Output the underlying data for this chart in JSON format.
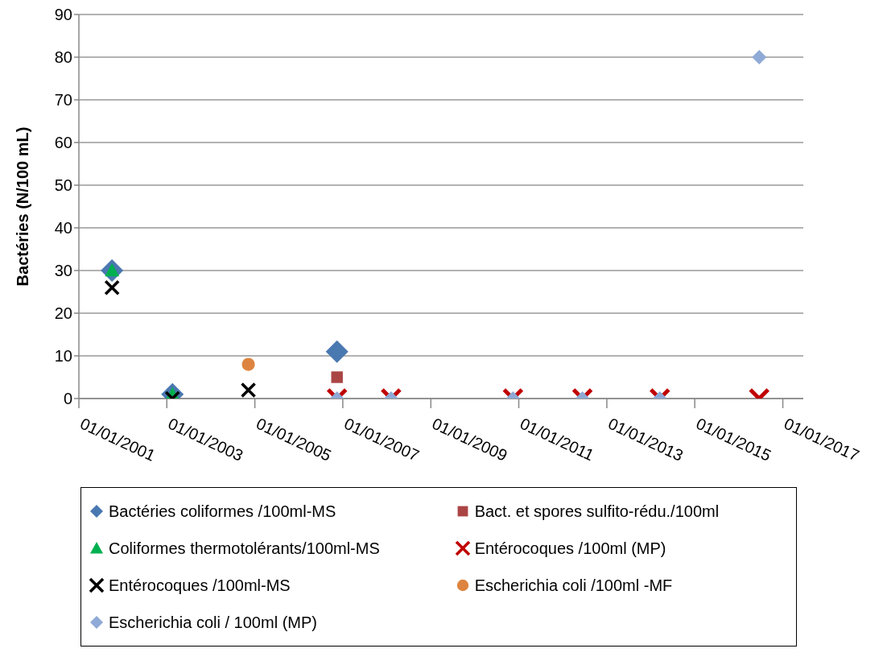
{
  "chart_data": {
    "type": "scatter",
    "ylabel": "Bactéries (N/100 mL)",
    "xlim": [
      "2001-01-01",
      "2017-06-20"
    ],
    "xticks": [
      {
        "value": "2001-01-01",
        "label": "01/01/2001"
      },
      {
        "value": "2003-01-01",
        "label": "01/01/2003"
      },
      {
        "value": "2005-01-01",
        "label": "01/01/2005"
      },
      {
        "value": "2007-01-01",
        "label": "01/01/2007"
      },
      {
        "value": "2009-01-01",
        "label": "01/01/2009"
      },
      {
        "value": "2011-01-01",
        "label": "01/01/2011"
      },
      {
        "value": "2013-01-01",
        "label": "01/01/2013"
      },
      {
        "value": "2015-01-01",
        "label": "01/01/2015"
      },
      {
        "value": "2017-01-01",
        "label": "01/01/2017"
      }
    ],
    "ylim": [
      0,
      90
    ],
    "yticks": [
      0,
      10,
      20,
      30,
      40,
      50,
      60,
      70,
      80,
      90
    ],
    "grid": "y",
    "legend": "bottom",
    "series": [
      {
        "name": "Bactéries coliformes /100ml-MS",
        "color": "#4a78b0",
        "marker": "diamond",
        "x": [
          "2001-10-03",
          "2003-02-17",
          "2006-11-14"
        ],
        "values": [
          30,
          1,
          11
        ]
      },
      {
        "name": "Bact. et spores sulfito-rédu./100ml",
        "color": "#ab4545",
        "marker": "square",
        "x": [
          "2006-11-14"
        ],
        "values": [
          5
        ]
      },
      {
        "name": "Coliformes thermotolérants/100ml-MS",
        "color": "#00b050",
        "marker": "triangle",
        "x": [
          "2001-10-03",
          "2003-02-17"
        ],
        "values": [
          30,
          1
        ]
      },
      {
        "name": "Entérocoques /100ml (MP)",
        "color": "#c00000",
        "marker": "cross",
        "x": [
          "2006-11-14",
          "2008-02-06",
          "2010-11-14",
          "2012-06-12",
          "2014-03-17",
          "2016-06-19"
        ],
        "values": [
          0,
          0,
          0,
          0,
          0,
          0
        ]
      },
      {
        "name": "Entérocoques /100ml-MS",
        "color": "#000000",
        "marker": "cross",
        "x": [
          "2001-10-03",
          "2003-02-17",
          "2004-11-08"
        ],
        "values": [
          26,
          0,
          2
        ]
      },
      {
        "name": "Escherichia coli /100ml -MF",
        "color": "#dd8540",
        "marker": "circle",
        "x": [
          "2004-11-08"
        ],
        "values": [
          8
        ]
      },
      {
        "name": "Escherichia coli / 100ml (MP)",
        "color": "#8faad6",
        "marker": "diamond",
        "x": [
          "2006-11-14",
          "2008-02-06",
          "2010-11-14",
          "2012-06-12",
          "2014-03-17",
          "2016-06-19"
        ],
        "values": [
          0,
          0,
          0,
          0,
          0,
          80
        ]
      }
    ]
  }
}
